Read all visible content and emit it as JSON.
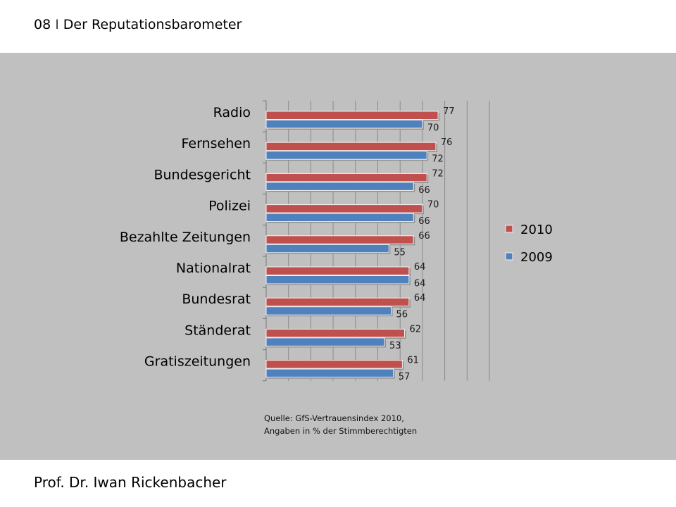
{
  "header": {
    "number": "08",
    "separator": "I",
    "title": "Der Reputationsbarometer"
  },
  "footer": {
    "author": "Prof. Dr. Iwan Rickenbacher"
  },
  "source": {
    "line1": "Quelle: GfS-Vertrauensindex 2010,",
    "line2": "Angaben in % der Stimmberechtigten"
  },
  "colors": {
    "background_panel": "#c0c0c0",
    "series_2010": "#c0504d",
    "series_2009": "#4f81bd"
  },
  "chart_data": {
    "type": "bar",
    "orientation": "horizontal",
    "title": "",
    "xlabel": "",
    "ylabel": "",
    "xlim": [
      0,
      100
    ],
    "grid": true,
    "legend_position": "right",
    "categories": [
      "Radio",
      "Fernsehen",
      "Bundesgericht",
      "Polizei",
      "Bezahlte Zeitungen",
      "Nationalrat",
      "Bundesrat",
      "Ständerat",
      "Gratiszeitungen"
    ],
    "series": [
      {
        "name": "2010",
        "color": "#c0504d",
        "values": [
          77,
          76,
          72,
          70,
          66,
          64,
          64,
          62,
          61
        ]
      },
      {
        "name": "2009",
        "color": "#4f81bd",
        "values": [
          70,
          72,
          66,
          66,
          55,
          64,
          56,
          53,
          57
        ]
      }
    ]
  }
}
